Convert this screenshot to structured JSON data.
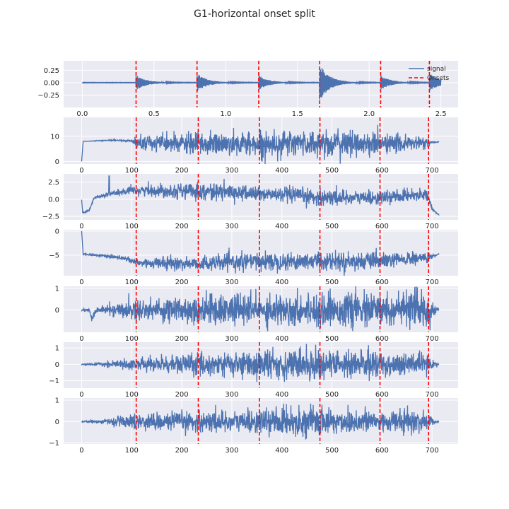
{
  "chart_data": {
    "type": "line",
    "title": "G1-horizontal onset split",
    "onsets_seconds": [
      0.375,
      0.8,
      1.23,
      1.655,
      2.08,
      2.42
    ],
    "onsets_frames": [
      109,
      233,
      355,
      476,
      596,
      693
    ],
    "legend": {
      "placement": "top-right",
      "entries": [
        {
          "label": "signal",
          "color": "#4c72b0",
          "style": "solid"
        },
        {
          "label": "Onsets",
          "color": "#ff0000",
          "style": "dashed"
        }
      ]
    },
    "colors": {
      "signal": "#4c72b0",
      "onsets": "#ff0000",
      "panel_bg": "#eaeaf2",
      "grid": "#ffffff"
    },
    "panels": [
      {
        "name": "waveform",
        "xlim": [
          -0.13,
          2.62
        ],
        "ylim": [
          -0.5,
          0.44
        ],
        "xticks": [
          0.0,
          0.5,
          1.0,
          1.5,
          2.0,
          2.5
        ],
        "xtick_labels": [
          "0.0",
          "0.5",
          "1.0",
          "1.5",
          "2.0",
          "2.5"
        ],
        "yticks": [
          0.25,
          0.0,
          -0.25
        ],
        "ytick_labels": [
          "0.25",
          "0.00",
          "−0.25"
        ],
        "onset_key": "onsets_seconds",
        "x_range": [
          0.0,
          2.5
        ],
        "amplitude": 0.37
      },
      {
        "name": "feature-1",
        "xlim": [
          -36,
          752
        ],
        "ylim": [
          -1.0,
          17.5
        ],
        "xticks": [
          0,
          100,
          200,
          300,
          400,
          500,
          600,
          700
        ],
        "xtick_labels": [
          "0",
          "100",
          "200",
          "300",
          "400",
          "500",
          "600",
          "700"
        ],
        "yticks": [
          10,
          0
        ],
        "ytick_labels": [
          "10",
          "0"
        ],
        "onset_key": "onsets_frames",
        "x_range": [
          0,
          714
        ],
        "base": [
          {
            "x": 0,
            "y": 0
          },
          {
            "x": 3,
            "y": 8.0
          },
          {
            "x": 60,
            "y": 8.4
          },
          {
            "x": 105,
            "y": 8.2
          },
          {
            "x": 110,
            "y": 7.2
          },
          {
            "x": 233,
            "y": 7.0
          },
          {
            "x": 355,
            "y": 7.0
          },
          {
            "x": 476,
            "y": 7.2
          },
          {
            "x": 596,
            "y": 7.0
          },
          {
            "x": 693,
            "y": 7.3
          },
          {
            "x": 714,
            "y": 7.8
          }
        ],
        "noise": [
          {
            "x": 0,
            "a": 0.05
          },
          {
            "x": 100,
            "a": 0.3
          },
          {
            "x": 110,
            "a": 2.5
          },
          {
            "x": 233,
            "a": 3.5
          },
          {
            "x": 355,
            "a": 4.0
          },
          {
            "x": 476,
            "a": 4.5
          },
          {
            "x": 596,
            "a": 3.5
          },
          {
            "x": 693,
            "a": 2.0
          },
          {
            "x": 700,
            "a": 0.3
          },
          {
            "x": 714,
            "a": 0.1
          }
        ]
      },
      {
        "name": "feature-2",
        "xlim": [
          -36,
          752
        ],
        "ylim": [
          -3.0,
          3.7
        ],
        "xticks": [
          0,
          100,
          200,
          300,
          400,
          500,
          600,
          700
        ],
        "xtick_labels": [
          "0",
          "100",
          "200",
          "300",
          "400",
          "500",
          "600",
          "700"
        ],
        "yticks": [
          2.5,
          0.0,
          -2.5
        ],
        "ytick_labels": [
          "2.5",
          "0.0",
          "−2.5"
        ],
        "onset_key": "onsets_frames",
        "x_range": [
          0,
          714
        ],
        "base": [
          {
            "x": 0,
            "y": 0
          },
          {
            "x": 2,
            "y": -2.0
          },
          {
            "x": 15,
            "y": -1.6
          },
          {
            "x": 25,
            "y": 0.2
          },
          {
            "x": 55,
            "y": 0.8
          },
          {
            "x": 110,
            "y": 1.3
          },
          {
            "x": 233,
            "y": 1.2
          },
          {
            "x": 355,
            "y": 0.8
          },
          {
            "x": 476,
            "y": 0.3
          },
          {
            "x": 596,
            "y": 0.2
          },
          {
            "x": 690,
            "y": 0.8
          },
          {
            "x": 700,
            "y": -1.5
          },
          {
            "x": 714,
            "y": -2.3
          }
        ],
        "noise": [
          {
            "x": 0,
            "a": 0.05
          },
          {
            "x": 30,
            "a": 0.2
          },
          {
            "x": 110,
            "a": 0.6
          },
          {
            "x": 233,
            "a": 1.0
          },
          {
            "x": 355,
            "a": 0.9
          },
          {
            "x": 476,
            "a": 1.0
          },
          {
            "x": 596,
            "a": 0.8
          },
          {
            "x": 693,
            "a": 0.6
          },
          {
            "x": 705,
            "a": 0.1
          },
          {
            "x": 714,
            "a": 0.05
          }
        ],
        "spikes": [
          {
            "x": 55,
            "y": 3.4
          }
        ]
      },
      {
        "name": "feature-3",
        "xlim": [
          -36,
          752
        ],
        "ylim": [
          -9.3,
          0.3
        ],
        "xticks": [
          0,
          100,
          200,
          300,
          400,
          500,
          600,
          700
        ],
        "xtick_labels": [
          "0",
          "100",
          "200",
          "300",
          "400",
          "500",
          "600",
          "700"
        ],
        "yticks": [
          0,
          -5
        ],
        "ytick_labels": [
          "0",
          "−5"
        ],
        "onset_key": "onsets_frames",
        "x_range": [
          0,
          714
        ],
        "base": [
          {
            "x": 0,
            "y": 0
          },
          {
            "x": 3,
            "y": -4.8
          },
          {
            "x": 50,
            "y": -5.2
          },
          {
            "x": 80,
            "y": -5.5
          },
          {
            "x": 110,
            "y": -6.6
          },
          {
            "x": 233,
            "y": -6.8
          },
          {
            "x": 355,
            "y": -6.3
          },
          {
            "x": 476,
            "y": -6.2
          },
          {
            "x": 596,
            "y": -6.3
          },
          {
            "x": 693,
            "y": -5.5
          },
          {
            "x": 714,
            "y": -4.8
          }
        ],
        "noise": [
          {
            "x": 0,
            "a": 0.1
          },
          {
            "x": 100,
            "a": 0.5
          },
          {
            "x": 110,
            "a": 0.9
          },
          {
            "x": 233,
            "a": 1.2
          },
          {
            "x": 355,
            "a": 1.5
          },
          {
            "x": 476,
            "a": 1.6
          },
          {
            "x": 596,
            "a": 1.4
          },
          {
            "x": 693,
            "a": 1.0
          },
          {
            "x": 705,
            "a": 0.2
          },
          {
            "x": 714,
            "a": 0.1
          }
        ]
      },
      {
        "name": "feature-4",
        "xlim": [
          -36,
          752
        ],
        "ylim": [
          -1.05,
          1.1
        ],
        "xticks": [
          0,
          100,
          200,
          300,
          400,
          500,
          600,
          700
        ],
        "xtick_labels": [
          "0",
          "100",
          "200",
          "300",
          "400",
          "500",
          "600",
          "700"
        ],
        "yticks": [
          1,
          0
        ],
        "ytick_labels": [
          "1",
          "0"
        ],
        "onset_key": "onsets_frames",
        "x_range": [
          0,
          714
        ],
        "base": [
          {
            "x": 0,
            "y": 0
          },
          {
            "x": 15,
            "y": 0
          },
          {
            "x": 20,
            "y": -0.4
          },
          {
            "x": 30,
            "y": 0
          },
          {
            "x": 700,
            "y": 0
          },
          {
            "x": 714,
            "y": 0
          }
        ],
        "noise": [
          {
            "x": 0,
            "a": 0.03
          },
          {
            "x": 40,
            "a": 0.15
          },
          {
            "x": 110,
            "a": 0.4
          },
          {
            "x": 233,
            "a": 0.55
          },
          {
            "x": 355,
            "a": 0.6
          },
          {
            "x": 476,
            "a": 0.6
          },
          {
            "x": 596,
            "a": 0.65
          },
          {
            "x": 693,
            "a": 0.7
          },
          {
            "x": 705,
            "a": 0.15
          },
          {
            "x": 714,
            "a": 0.05
          }
        ]
      },
      {
        "name": "feature-5",
        "xlim": [
          -36,
          752
        ],
        "ylim": [
          -1.45,
          1.35
        ],
        "xticks": [
          0,
          100,
          200,
          300,
          400,
          500,
          600,
          700
        ],
        "xtick_labels": [
          "0",
          "100",
          "200",
          "300",
          "400",
          "500",
          "600",
          "700"
        ],
        "yticks": [
          1,
          0,
          -1
        ],
        "ytick_labels": [
          "1",
          "0",
          "−1"
        ],
        "onset_key": "onsets_frames",
        "x_range": [
          0,
          714
        ],
        "base": [
          {
            "x": 0,
            "y": 0
          },
          {
            "x": 714,
            "y": 0
          }
        ],
        "noise": [
          {
            "x": 0,
            "a": 0.02
          },
          {
            "x": 40,
            "a": 0.1
          },
          {
            "x": 110,
            "a": 0.3
          },
          {
            "x": 233,
            "a": 0.55
          },
          {
            "x": 355,
            "a": 0.7
          },
          {
            "x": 476,
            "a": 0.75
          },
          {
            "x": 596,
            "a": 0.65
          },
          {
            "x": 693,
            "a": 0.5
          },
          {
            "x": 705,
            "a": 0.1
          },
          {
            "x": 714,
            "a": 0.03
          }
        ]
      },
      {
        "name": "feature-6",
        "xlim": [
          -36,
          752
        ],
        "ylim": [
          -1.05,
          1.1
        ],
        "xticks": [
          0,
          100,
          200,
          300,
          400,
          500,
          600,
          700
        ],
        "xtick_labels": [
          "0",
          "100",
          "200",
          "300",
          "400",
          "500",
          "600",
          "700"
        ],
        "yticks": [
          1,
          0,
          -1
        ],
        "ytick_labels": [
          "1",
          "0",
          "−1"
        ],
        "onset_key": "onsets_frames",
        "x_range": [
          0,
          714
        ],
        "base": [
          {
            "x": 0,
            "y": 0
          },
          {
            "x": 714,
            "y": 0
          }
        ],
        "noise": [
          {
            "x": 0,
            "a": 0.02
          },
          {
            "x": 40,
            "a": 0.08
          },
          {
            "x": 110,
            "a": 0.3
          },
          {
            "x": 233,
            "a": 0.4
          },
          {
            "x": 355,
            "a": 0.45
          },
          {
            "x": 476,
            "a": 0.55
          },
          {
            "x": 596,
            "a": 0.45
          },
          {
            "x": 693,
            "a": 0.4
          },
          {
            "x": 705,
            "a": 0.08
          },
          {
            "x": 714,
            "a": 0.03
          }
        ]
      }
    ]
  }
}
